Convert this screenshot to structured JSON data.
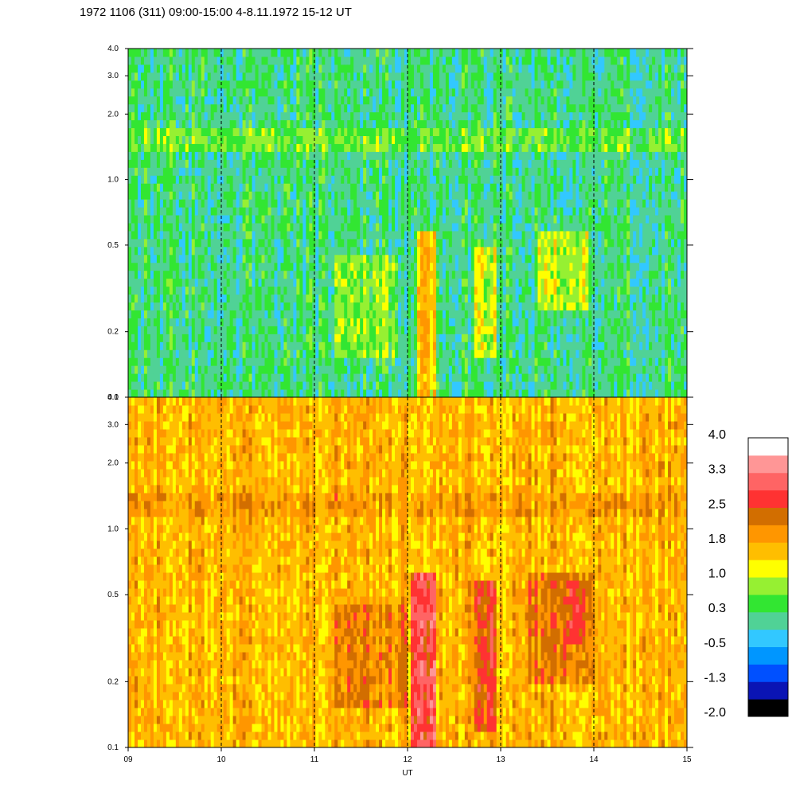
{
  "chart_data": {
    "type": "heatmap",
    "title": "1972 1106 (311) 09:00-15:00 4-8.11.1972  15-12 UT",
    "xlabel": "UT",
    "x_ticks": [
      "09",
      "10",
      "11",
      "12",
      "13",
      "14",
      "15"
    ],
    "x_range": [
      9,
      15
    ],
    "y_scale": "log",
    "y_range": [
      0.1,
      4.0
    ],
    "y_ticks": [
      {
        "value": 0.1,
        "label": "0.1"
      },
      {
        "value": 0.2,
        "label": "0.2"
      },
      {
        "value": 0.5,
        "label": "0.5"
      },
      {
        "value": 1.0,
        "label": "1.0"
      },
      {
        "value": 2.0,
        "label": "2.0"
      },
      {
        "value": 3.0,
        "label": "3.0"
      },
      {
        "value": 4.0,
        "label": "4.0"
      }
    ],
    "dashed_hour_lines": [
      10,
      11,
      12,
      13,
      14
    ],
    "colorbar": {
      "range": [
        -2.0,
        4.0
      ],
      "tick_labels": [
        "4.0",
        "3.3",
        "2.5",
        "1.8",
        "1.0",
        "0.3",
        "-0.5",
        "-1.3",
        "-2.0"
      ],
      "colors": [
        "#000000",
        "#0a14b4",
        "#0050ff",
        "#0096ff",
        "#32c8ff",
        "#50d296",
        "#32e632",
        "#96f032",
        "#ffff00",
        "#ffbe00",
        "#ff9600",
        "#d26e00",
        "#ff3232",
        "#ff6464",
        "#ff9696",
        "#ffffff"
      ]
    },
    "panels": [
      {
        "name": "",
        "base_level": 0.15,
        "features": [
          {
            "t_start": 12.1,
            "t_end": 12.3,
            "f_low": 0.1,
            "f_high": 0.6,
            "level": 1.6
          },
          {
            "t_start": 12.7,
            "t_end": 12.95,
            "f_low": 0.15,
            "f_high": 0.5,
            "level": 1.1
          },
          {
            "t_start": 13.4,
            "t_end": 13.95,
            "f_low": 0.25,
            "f_high": 0.6,
            "level": 1.0
          },
          {
            "t_start": 11.2,
            "t_end": 11.9,
            "f_low": 0.15,
            "f_high": 0.45,
            "level": 0.7
          },
          {
            "t_start": 9.0,
            "t_end": 15.0,
            "f_low": 1.3,
            "f_high": 1.7,
            "level": 0.6
          }
        ]
      },
      {
        "name": "",
        "base_level": 1.65,
        "features": [
          {
            "t_start": 12.05,
            "t_end": 12.3,
            "f_low": 0.1,
            "f_high": 0.65,
            "level": 3.0
          },
          {
            "t_start": 12.7,
            "t_end": 12.95,
            "f_low": 0.12,
            "f_high": 0.6,
            "level": 2.6
          },
          {
            "t_start": 13.7,
            "t_end": 13.9,
            "f_low": 0.3,
            "f_high": 0.6,
            "level": 2.7
          },
          {
            "t_start": 13.3,
            "t_end": 14.0,
            "f_low": 0.2,
            "f_high": 0.65,
            "level": 2.2
          },
          {
            "t_start": 11.2,
            "t_end": 12.0,
            "f_low": 0.15,
            "f_high": 0.45,
            "level": 2.1
          },
          {
            "t_start": 9.0,
            "t_end": 15.0,
            "f_low": 1.1,
            "f_high": 1.5,
            "level": 1.9
          },
          {
            "t_start": 9.0,
            "t_end": 15.0,
            "f_low": 0.5,
            "f_high": 1.0,
            "level": 1.2
          },
          {
            "t_start": 9.0,
            "t_end": 15.0,
            "f_low": 3.3,
            "f_high": 4.0,
            "level": 1.2
          }
        ]
      }
    ]
  }
}
